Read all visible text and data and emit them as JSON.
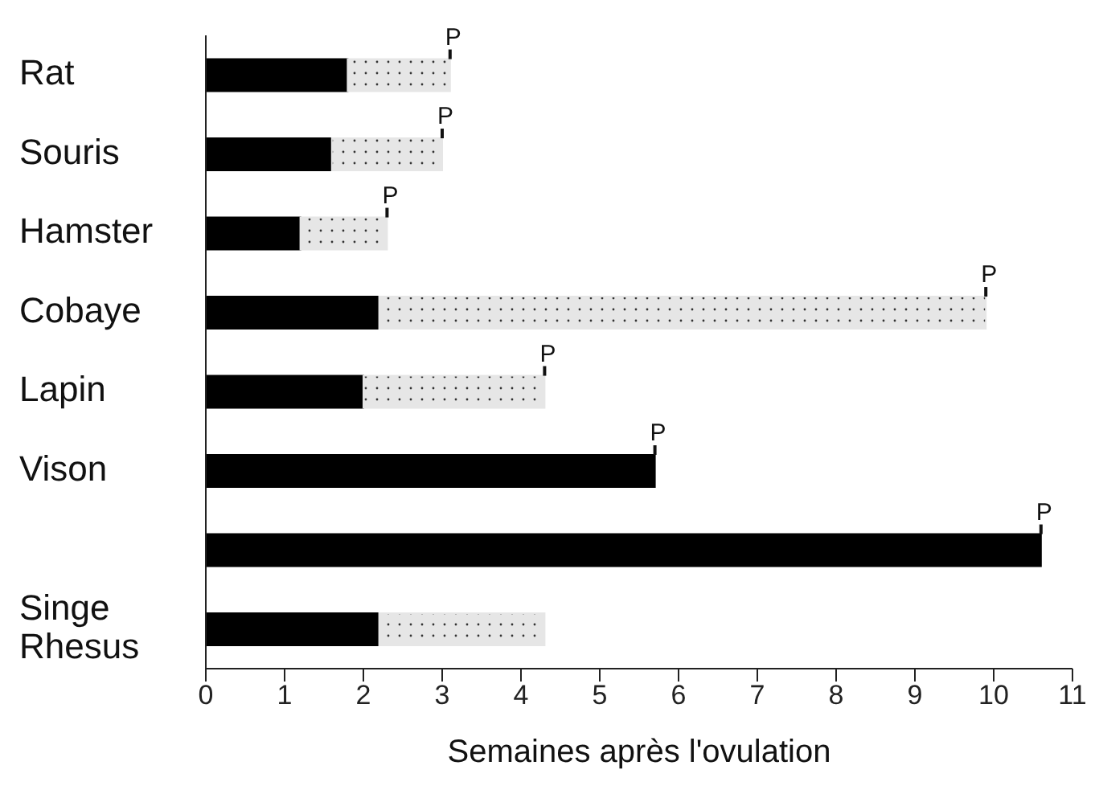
{
  "chart_data": {
    "type": "bar",
    "orientation": "horizontal",
    "stacked": true,
    "xlabel": "Semaines après l'ovulation",
    "categories": [
      "Rat",
      "Souris",
      "Hamster",
      "Cobaye",
      "Lapin",
      "Vison",
      null,
      "Singe Rhesus"
    ],
    "series": [
      {
        "color": "#000000",
        "values": [
          1.8,
          1.6,
          1.2,
          2.2,
          2.0,
          5.7,
          10.6,
          2.2
        ]
      },
      {
        "color": "#e6e6e6",
        "values": [
          1.3,
          1.4,
          1.1,
          7.7,
          2.3,
          null,
          null,
          2.1
        ]
      }
    ],
    "totals": [
      "P",
      "P",
      "P",
      "P",
      "P",
      "P",
      "P",
      null
    ],
    "xlim": [
      0,
      11
    ],
    "xticks": [
      0,
      1,
      2,
      3,
      4,
      5,
      6,
      7,
      8,
      9,
      10,
      11
    ]
  }
}
